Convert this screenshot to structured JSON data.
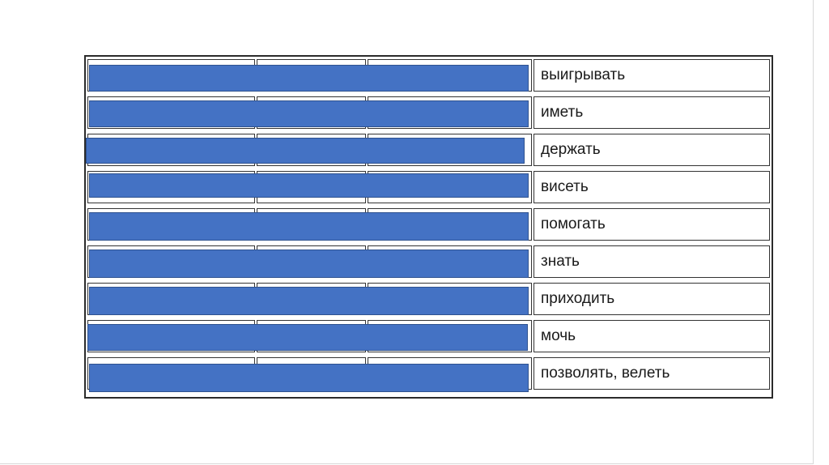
{
  "table": {
    "rows": [
      {
        "meaning": "выигрывать"
      },
      {
        "meaning": "иметь"
      },
      {
        "meaning": "держать"
      },
      {
        "meaning": "висеть"
      },
      {
        "meaning": "помогать"
      },
      {
        "meaning": "знать"
      },
      {
        "meaning": "приходить"
      },
      {
        "meaning": "мочь"
      },
      {
        "meaning": "позволять, велеть"
      }
    ]
  },
  "colors": {
    "redaction": "#4472c4",
    "border": "#333333",
    "background": "#ffffff"
  }
}
